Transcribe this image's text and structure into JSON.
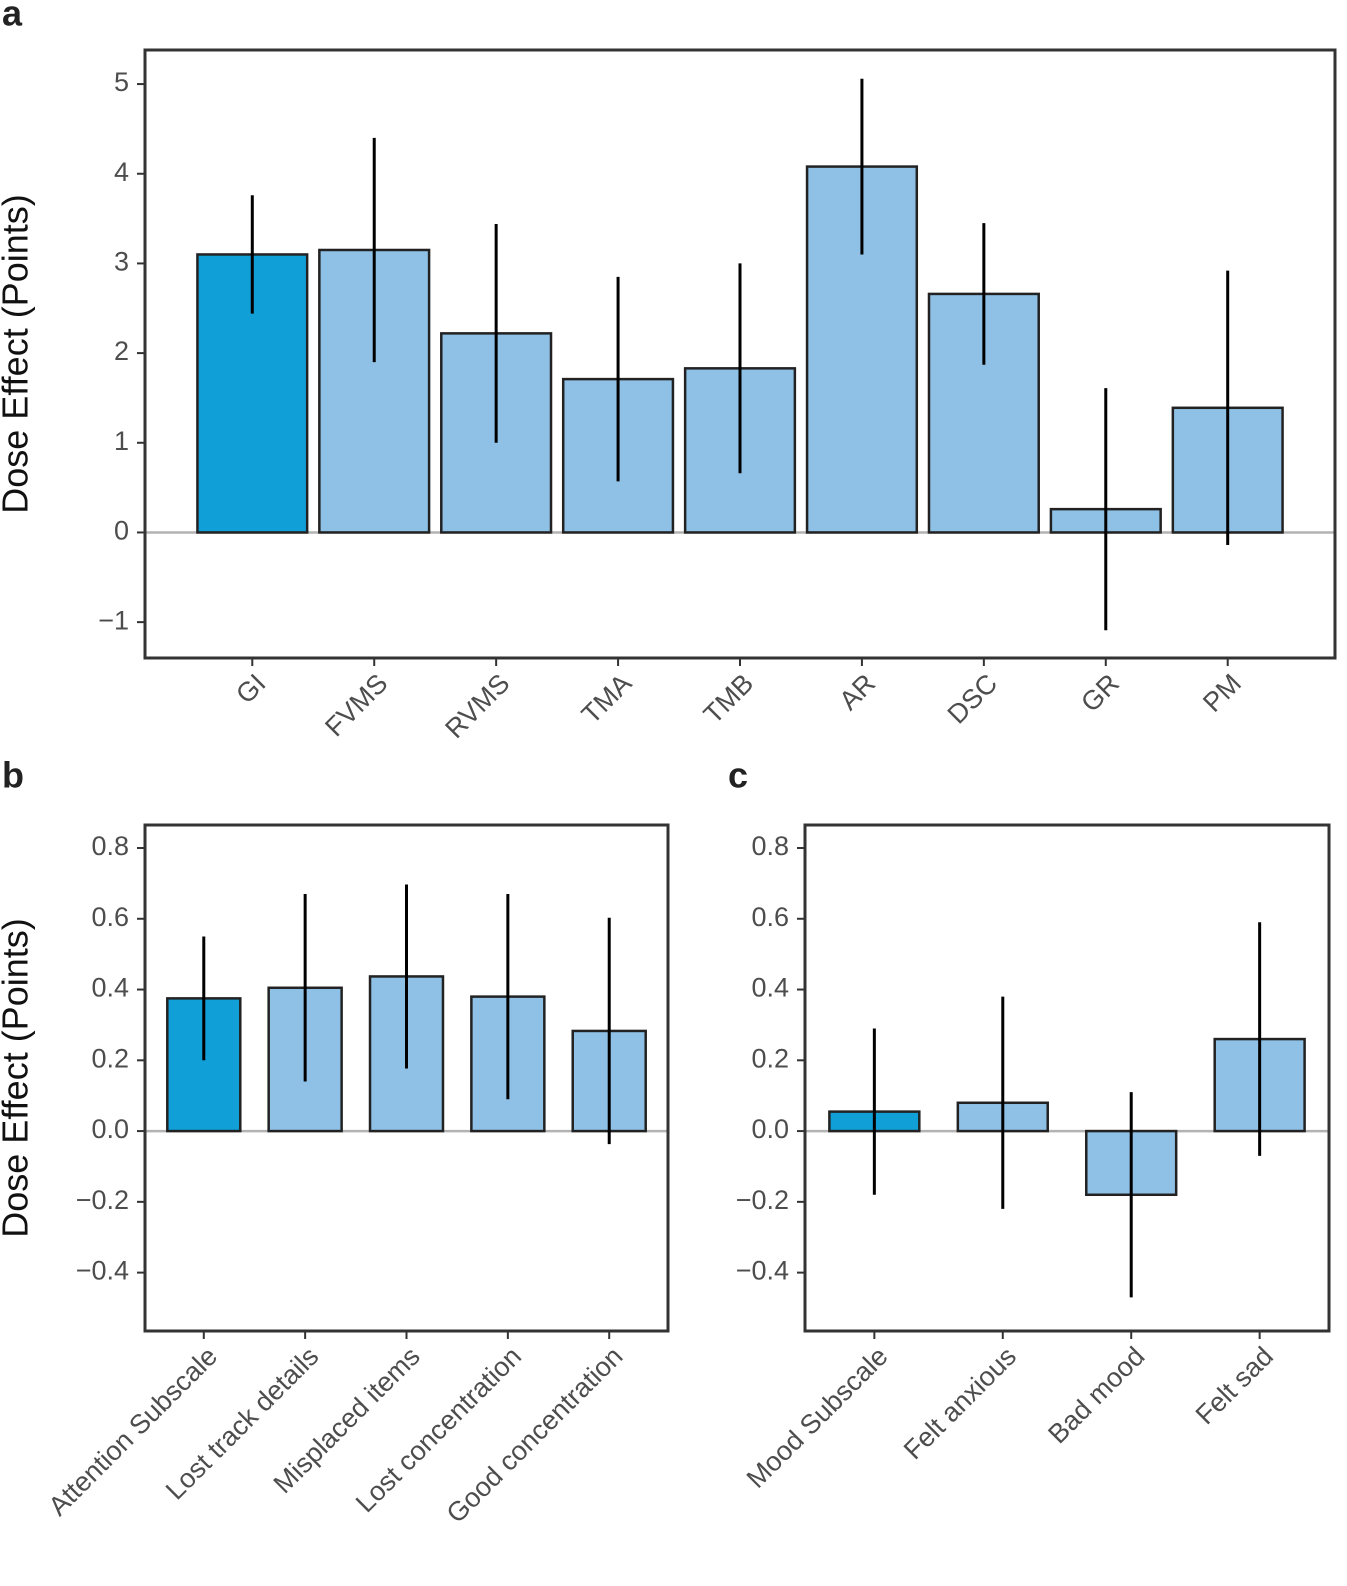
{
  "chart_data": [
    {
      "type": "bar",
      "panel_label": "a",
      "y_label": "Dose Effect (Points)",
      "categories": [
        "GI",
        "FVMS",
        "RVMS",
        "TMA",
        "TMB",
        "AR",
        "DSC",
        "GR",
        "PM"
      ],
      "values": [
        3.1,
        3.15,
        2.22,
        1.71,
        1.83,
        4.08,
        2.66,
        0.26,
        1.39
      ],
      "errors": [
        0.66,
        1.25,
        1.22,
        1.14,
        1.17,
        0.98,
        0.79,
        1.35,
        1.53
      ],
      "colors": [
        "#119fd8",
        "#8ec1e5",
        "#8ec1e5",
        "#8ec1e5",
        "#8ec1e5",
        "#8ec1e5",
        "#8ec1e5",
        "#8ec1e5",
        "#8ec1e5"
      ],
      "ylim": [
        -1.4,
        5.38
      ],
      "yticks": [
        {
          "value": -1,
          "label": "−1"
        },
        0,
        1,
        2,
        3,
        4,
        5
      ]
    },
    {
      "type": "bar",
      "panel_label": "b",
      "y_label": "Dose Effect (Points)",
      "categories": [
        "Attention Subscale",
        "Lost track details",
        "Misplaced items",
        "Lost concentration",
        "Good concentration"
      ],
      "values": [
        0.375,
        0.405,
        0.437,
        0.38,
        0.283
      ],
      "errors": [
        0.175,
        0.265,
        0.26,
        0.29,
        0.32
      ],
      "colors": [
        "#119fd8",
        "#8ec1e5",
        "#8ec1e5",
        "#8ec1e5",
        "#8ec1e5"
      ],
      "ylim": [
        -0.565,
        0.865
      ],
      "yticks": [
        {
          "value": -0.4,
          "label": "−0.4"
        },
        {
          "value": -0.2,
          "label": "−0.2"
        },
        {
          "value": 0,
          "label": "0.0"
        },
        0.2,
        0.4,
        0.6,
        0.8
      ]
    },
    {
      "type": "bar",
      "panel_label": "c",
      "categories": [
        "Mood Subscale",
        "Felt anxious",
        "Bad mood",
        "Felt sad"
      ],
      "values": [
        0.055,
        0.08,
        -0.18,
        0.26
      ],
      "errors": [
        0.235,
        0.3,
        0.29,
        0.33
      ],
      "colors": [
        "#119fd8",
        "#8ec1e5",
        "#8ec1e5",
        "#8ec1e5"
      ],
      "ylim": [
        -0.565,
        0.865
      ],
      "yticks": [
        {
          "value": -0.4,
          "label": "−0.4"
        },
        {
          "value": -0.2,
          "label": "−0.2"
        },
        {
          "value": 0,
          "label": "0.0"
        },
        0.2,
        0.4,
        0.6,
        0.8
      ]
    }
  ]
}
